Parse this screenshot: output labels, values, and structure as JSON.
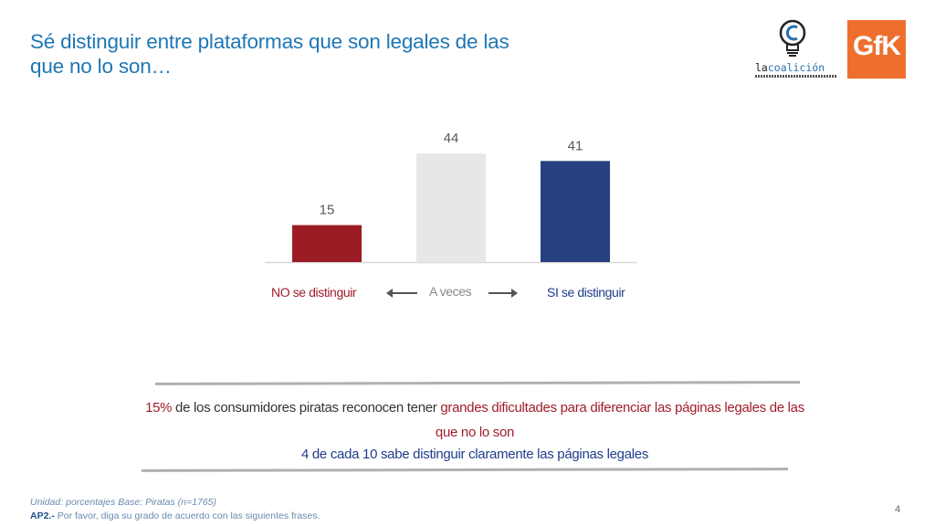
{
  "title": "Sé distinguir entre plataformas que son legales de las que no lo son…",
  "logos": {
    "coalicion_prefix": "la",
    "coalicion_name": "coalición",
    "gfk": "GfK"
  },
  "chart_data": {
    "type": "bar",
    "categories": [
      "NO se distinguir",
      "A veces",
      "SI se distinguir"
    ],
    "values": [
      15,
      44,
      41
    ],
    "colors": [
      "#9b1c24",
      "#e9e6e6",
      "#25417f"
    ],
    "ylim": [
      0,
      50
    ],
    "title": "",
    "xlabel": "",
    "ylabel": ""
  },
  "summary": {
    "pct": "15%",
    "text1": " de los consumidores piratas reconocen tener ",
    "highlight": "grandes dificultades para diferenciar las páginas legales de las que no lo son",
    "line2": "4 de cada 10 sabe distinguir claramente las páginas legales"
  },
  "footnote": {
    "unit": "Unidad: porcentajes  Base: Piratas (n=1765)",
    "question_code": "AP2.-",
    "question_text": " Por favor, diga su grado de acuerdo con las siguientes frases."
  },
  "page_number": "4"
}
